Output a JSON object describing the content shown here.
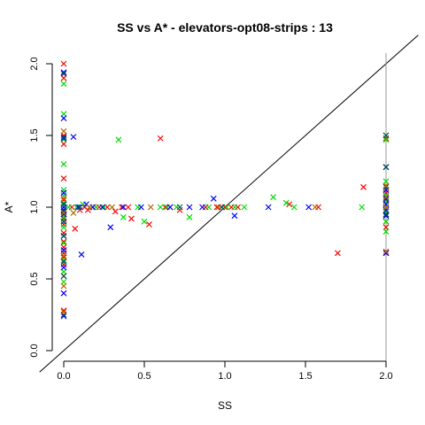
{
  "chart_data": {
    "type": "scatter",
    "title": "SS vs A* - elevators-opt08-strips : 13",
    "xlabel": "SS",
    "ylabel": "A*",
    "xlim": [
      0,
      2
    ],
    "ylim": [
      0,
      2
    ],
    "xticks": [
      "0.0",
      "0.5",
      "1.0",
      "1.5",
      "2.0"
    ],
    "yticks": [
      "0.0",
      "0.5",
      "1.0",
      "1.5",
      "2.0"
    ],
    "marker": "x",
    "grid": false,
    "legend": "none",
    "reference_lines": [
      {
        "kind": "identity",
        "color": "#000000"
      },
      {
        "kind": "vertical",
        "x": 2.0,
        "color": "#999999"
      }
    ],
    "series": [
      {
        "color": "#ff0000",
        "x": [
          0,
          0,
          0,
          0,
          0,
          0,
          0,
          0,
          0,
          0,
          0,
          0,
          0,
          0,
          0,
          0,
          0,
          0,
          0,
          0.05,
          0.07,
          0.1,
          0.13,
          0.15,
          0.18,
          0.22,
          0.27,
          0.32,
          0.36,
          0.4,
          0.42,
          0.53,
          0.6,
          0.63,
          0.66,
          0.72,
          0.88,
          0.95,
          1.0,
          1.04,
          1.08,
          1.4,
          1.58,
          1.7,
          1.86,
          2,
          2,
          2,
          2,
          2,
          2,
          2,
          2,
          2,
          2,
          2
        ],
        "y": [
          2.0,
          1.9,
          1.5,
          1.44,
          1.2,
          1.05,
          1.0,
          0.98,
          0.95,
          0.92,
          0.88,
          0.82,
          0.76,
          0.72,
          0.68,
          0.65,
          0.6,
          0.52,
          0.28,
          1.0,
          0.85,
          0.98,
          1.0,
          0.98,
          1.0,
          1.0,
          1.0,
          0.97,
          1.0,
          1.0,
          0.92,
          0.88,
          1.48,
          1.0,
          1.0,
          0.98,
          1.0,
          1.0,
          1.0,
          1.0,
          1.0,
          1.02,
          1.0,
          0.68,
          1.14,
          1.12,
          1.1,
          1.05,
          1.02,
          1.0,
          0.97,
          0.95,
          0.9,
          0.86,
          0.68,
          1.48
        ]
      },
      {
        "color": "#00dd00",
        "x": [
          0,
          0,
          0,
          0,
          0,
          0,
          0,
          0,
          0,
          0,
          0,
          0,
          0,
          0,
          0,
          0,
          0,
          0,
          0.03,
          0.08,
          0.12,
          0.16,
          0.2,
          0.25,
          0.34,
          0.37,
          0.46,
          0.5,
          0.6,
          0.64,
          0.7,
          0.78,
          0.9,
          0.98,
          1.01,
          1.06,
          1.12,
          1.3,
          1.38,
          1.43,
          1.85,
          2,
          2,
          2,
          2,
          2,
          2,
          2,
          2,
          2,
          2,
          2
        ],
        "y": [
          1.86,
          1.65,
          1.47,
          1.3,
          1.12,
          1.08,
          1.03,
          1.0,
          0.97,
          0.93,
          0.9,
          0.86,
          0.8,
          0.75,
          0.7,
          0.63,
          0.55,
          0.48,
          1.0,
          1.0,
          1.02,
          1.0,
          1.0,
          1.0,
          1.47,
          0.93,
          1.0,
          0.9,
          1.0,
          1.0,
          1.0,
          0.93,
          1.0,
          1.0,
          1.0,
          1.0,
          1.0,
          1.07,
          1.03,
          1.0,
          1.0,
          1.47,
          1.18,
          1.12,
          1.08,
          1.04,
          1.0,
          0.97,
          0.94,
          0.9,
          0.83,
          1.5
        ]
      },
      {
        "color": "#0000ff",
        "x": [
          0,
          0,
          0,
          0,
          0,
          0,
          0,
          0,
          0,
          0,
          0,
          0,
          0,
          0,
          0.06,
          0.09,
          0.11,
          0.14,
          0.18,
          0.24,
          0.29,
          0.37,
          0.48,
          0.66,
          0.78,
          0.86,
          0.93,
          0.98,
          1.06,
          1.27,
          1.52,
          2,
          2,
          2,
          2,
          2,
          2,
          2,
          2
        ],
        "y": [
          1.94,
          1.62,
          1.48,
          1.1,
          1.02,
          1.0,
          0.98,
          0.95,
          0.9,
          0.8,
          0.7,
          0.58,
          0.4,
          0.24,
          1.49,
          1.0,
          0.67,
          1.02,
          1.0,
          1.0,
          0.86,
          1.0,
          1.0,
          1.0,
          1.0,
          1.0,
          1.06,
          1.0,
          0.94,
          1.0,
          1.0,
          1.28,
          1.12,
          1.06,
          1.02,
          1.0,
          0.98,
          0.94,
          0.68
        ]
      },
      {
        "color": "#005050",
        "x": [
          0,
          0,
          0,
          0,
          0,
          0,
          0,
          0,
          0,
          0.1,
          0.72,
          0.98,
          2,
          2,
          2,
          2,
          2
        ],
        "y": [
          1.93,
          1.49,
          1.02,
          0.97,
          0.9,
          0.8,
          0.62,
          0.52,
          0.25,
          1.0,
          1.0,
          1.0,
          1.5,
          1.28,
          1.14,
          1.0,
          0.95
        ]
      },
      {
        "color": "#bb6600",
        "x": [
          0,
          0,
          0,
          0,
          0,
          0,
          0.06,
          0.16,
          0.3,
          0.54,
          0.96,
          1.56,
          2,
          2,
          2,
          2
        ],
        "y": [
          1.53,
          1.06,
          0.96,
          0.66,
          0.45,
          0.27,
          0.96,
          1.0,
          1.0,
          1.0,
          1.0,
          1.0,
          1.15,
          1.07,
          1.0,
          0.69
        ]
      }
    ]
  }
}
